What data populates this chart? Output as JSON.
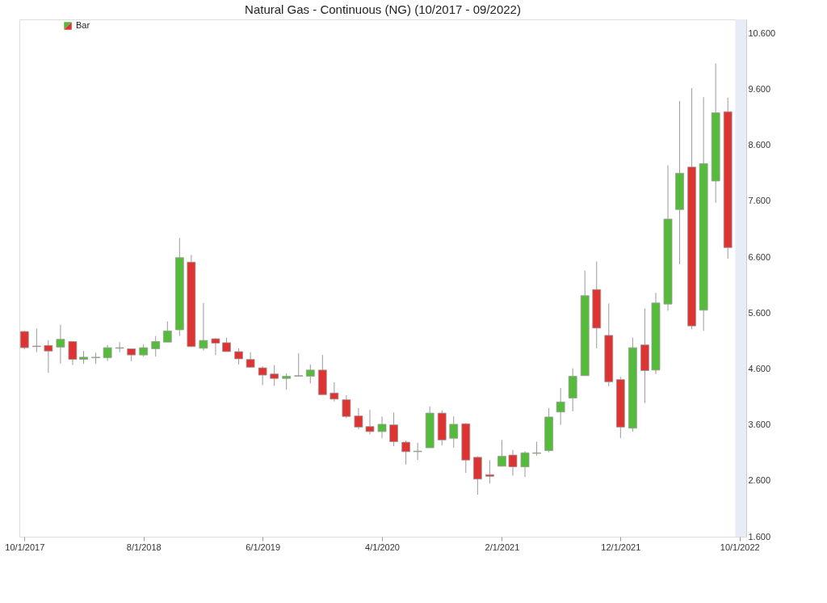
{
  "chart_data": {
    "type": "candlestick",
    "title": "Natural Gas - Continuous (NG) (10/2017 - 09/2022)",
    "legend": "top left",
    "x": [
      "2017-10",
      "2017-11",
      "2017-12",
      "2018-01",
      "2018-02",
      "2018-03",
      "2018-04",
      "2018-05",
      "2018-06",
      "2018-07",
      "2018-08",
      "2018-09",
      "2018-10",
      "2018-11",
      "2018-12",
      "2019-01",
      "2019-02",
      "2019-03",
      "2019-04",
      "2019-05",
      "2019-06",
      "2019-07",
      "2019-08",
      "2019-09",
      "2019-10",
      "2019-11",
      "2019-12",
      "2020-01",
      "2020-02",
      "2020-03",
      "2020-04",
      "2020-05",
      "2020-06",
      "2020-07",
      "2020-08",
      "2020-09",
      "2020-10",
      "2020-11",
      "2020-12",
      "2021-01",
      "2021-02",
      "2021-03",
      "2021-04",
      "2021-05",
      "2021-06",
      "2021-07",
      "2021-08",
      "2021-09",
      "2021-10",
      "2021-11",
      "2021-12",
      "2022-01",
      "2022-02",
      "2022-03",
      "2022-04",
      "2022-05",
      "2022-06",
      "2022-07",
      "2022-08",
      "2022-09"
    ],
    "series": [
      {
        "name": "Bar",
        "ohlc": [
          [
            5.27,
            5.28,
            4.95,
            4.98
          ],
          [
            5.01,
            5.32,
            4.9,
            5.0
          ],
          [
            5.02,
            5.11,
            4.53,
            4.92
          ],
          [
            4.99,
            5.39,
            4.7,
            5.13
          ],
          [
            5.09,
            5.09,
            4.67,
            4.77
          ],
          [
            4.77,
            4.92,
            4.69,
            4.81
          ],
          [
            4.8,
            4.89,
            4.69,
            4.81
          ],
          [
            4.8,
            5.03,
            4.74,
            4.98
          ],
          [
            4.97,
            5.08,
            4.9,
            4.98
          ],
          [
            4.96,
            4.96,
            4.74,
            4.85
          ],
          [
            4.85,
            5.04,
            4.82,
            4.98
          ],
          [
            4.96,
            5.19,
            4.82,
            5.09
          ],
          [
            5.08,
            5.45,
            5.08,
            5.28
          ],
          [
            5.3,
            6.94,
            5.19,
            6.59
          ],
          [
            6.51,
            6.64,
            4.99,
            5.0
          ],
          [
            4.97,
            5.78,
            4.93,
            5.11
          ],
          [
            5.14,
            5.15,
            4.85,
            5.06
          ],
          [
            5.07,
            5.16,
            4.91,
            4.91
          ],
          [
            4.91,
            4.97,
            4.68,
            4.78
          ],
          [
            4.77,
            4.9,
            4.63,
            4.63
          ],
          [
            4.62,
            4.65,
            4.31,
            4.49
          ],
          [
            4.51,
            4.67,
            4.3,
            4.43
          ],
          [
            4.43,
            4.52,
            4.23,
            4.47
          ],
          [
            4.47,
            4.88,
            4.47,
            4.48
          ],
          [
            4.47,
            4.68,
            4.34,
            4.58
          ],
          [
            4.58,
            4.85,
            4.14,
            4.14
          ],
          [
            4.17,
            4.36,
            4.02,
            4.06
          ],
          [
            4.05,
            4.13,
            3.72,
            3.75
          ],
          [
            3.76,
            3.9,
            3.52,
            3.56
          ],
          [
            3.57,
            3.87,
            3.43,
            3.48
          ],
          [
            3.48,
            3.75,
            3.36,
            3.61
          ],
          [
            3.6,
            3.82,
            3.22,
            3.3
          ],
          [
            3.29,
            3.32,
            2.89,
            3.12
          ],
          [
            3.12,
            3.28,
            2.97,
            3.13
          ],
          [
            3.19,
            3.93,
            3.19,
            3.81
          ],
          [
            3.81,
            3.86,
            3.23,
            3.33
          ],
          [
            3.36,
            3.75,
            3.19,
            3.61
          ],
          [
            3.62,
            3.63,
            2.74,
            2.97
          ],
          [
            3.02,
            3.04,
            2.35,
            2.63
          ],
          [
            2.71,
            2.97,
            2.55,
            2.68
          ],
          [
            2.86,
            3.33,
            2.86,
            3.04
          ],
          [
            3.06,
            3.15,
            2.69,
            2.85
          ],
          [
            2.85,
            3.13,
            2.67,
            3.1
          ],
          [
            3.09,
            3.3,
            3.05,
            3.1
          ],
          [
            3.14,
            3.9,
            3.11,
            3.74
          ],
          [
            3.83,
            4.26,
            3.6,
            4.01
          ],
          [
            4.08,
            4.61,
            3.84,
            4.47
          ],
          [
            4.48,
            6.36,
            4.48,
            5.91
          ],
          [
            6.02,
            6.52,
            4.97,
            5.33
          ],
          [
            5.2,
            5.77,
            4.29,
            4.37
          ],
          [
            4.41,
            4.46,
            3.36,
            3.56
          ],
          [
            3.54,
            5.16,
            3.48,
            4.98
          ],
          [
            5.03,
            5.68,
            3.99,
            4.57
          ],
          [
            4.58,
            5.96,
            4.51,
            5.78
          ],
          [
            5.76,
            8.24,
            5.64,
            7.28
          ],
          [
            7.45,
            9.39,
            6.47,
            8.1
          ],
          [
            8.21,
            9.62,
            5.31,
            5.37
          ],
          [
            5.65,
            9.46,
            5.28,
            8.27
          ],
          [
            7.96,
            10.06,
            7.57,
            9.18
          ],
          [
            9.2,
            9.45,
            6.57,
            6.77
          ]
        ],
        "colors": [
          "#dd3333",
          "#dd3333",
          "#dd3333",
          "#55bb3a",
          "#dd3333",
          "#55bb3a",
          "#55bb3a",
          "#55bb3a",
          "#55bb3a",
          "#dd3333",
          "#55bb3a",
          "#55bb3a",
          "#55bb3a",
          "#55bb3a",
          "#dd3333",
          "#55bb3a",
          "#dd3333",
          "#dd3333",
          "#dd3333",
          "#dd3333",
          "#dd3333",
          "#dd3333",
          "#55bb3a",
          "#55bb3a",
          "#55bb3a",
          "#dd3333",
          "#dd3333",
          "#dd3333",
          "#dd3333",
          "#dd3333",
          "#55bb3a",
          "#dd3333",
          "#dd3333",
          "#55bb3a",
          "#55bb3a",
          "#dd3333",
          "#55bb3a",
          "#dd3333",
          "#dd3333",
          "#dd3333",
          "#55bb3a",
          "#dd3333",
          "#55bb3a",
          "#55bb3a",
          "#55bb3a",
          "#55bb3a",
          "#55bb3a",
          "#55bb3a",
          "#dd3333",
          "#dd3333",
          "#dd3333",
          "#55bb3a",
          "#dd3333",
          "#55bb3a",
          "#55bb3a",
          "#55bb3a",
          "#dd3333",
          "#55bb3a",
          "#55bb3a",
          "#dd3333"
        ]
      }
    ],
    "xlim": [
      "2017-09-18",
      "2022-10-18"
    ],
    "xticks": [
      {
        "value": "2017-10-01",
        "label": "10/1/2017"
      },
      {
        "value": "2018-08-01",
        "label": "8/1/2018"
      },
      {
        "value": "2019-06-01",
        "label": "6/1/2019"
      },
      {
        "value": "2020-04-01",
        "label": "4/1/2020"
      },
      {
        "value": "2021-02-01",
        "label": "2/1/2021"
      },
      {
        "value": "2021-12-01",
        "label": "12/1/2021"
      },
      {
        "value": "2022-10-01",
        "label": "10/1/2022"
      }
    ],
    "ylim": [
      1.6,
      10.85
    ],
    "yticks": [
      {
        "value": 1.6,
        "label": "1.600"
      },
      {
        "value": 2.6,
        "label": "2.600"
      },
      {
        "value": 3.6,
        "label": "3.600"
      },
      {
        "value": 4.6,
        "label": "4.600"
      },
      {
        "value": 5.6,
        "label": "5.600"
      },
      {
        "value": 6.6,
        "label": "6.600"
      },
      {
        "value": 7.6,
        "label": "7.600"
      },
      {
        "value": 8.6,
        "label": "8.600"
      },
      {
        "value": 9.6,
        "label": "9.600"
      },
      {
        "value": 10.6,
        "label": "10.600"
      }
    ],
    "bands": [
      {
        "axis": "x",
        "from": "2022-09-20",
        "to": "2022-10-18",
        "color": "#e6edf6"
      }
    ],
    "grid": false
  }
}
